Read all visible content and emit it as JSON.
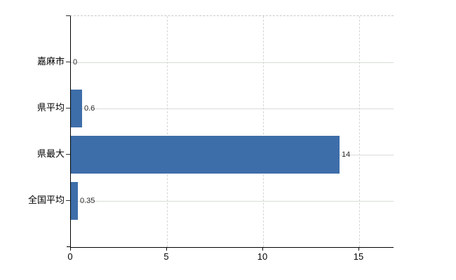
{
  "chart_data": {
    "type": "bar",
    "orientation": "horizontal",
    "title": "",
    "categories": [
      "嘉麻市",
      "県平均",
      "県最大",
      "全国平均"
    ],
    "values": [
      0,
      0.6,
      14,
      0.35
    ],
    "value_labels": [
      "0",
      "0.6",
      "14",
      "0.35"
    ],
    "x_ticks": [
      0,
      5,
      10,
      15
    ],
    "x_tick_labels": [
      "0",
      "5",
      "10",
      "15"
    ],
    "xlim": [
      0,
      16.8
    ],
    "grid": true,
    "legend": false,
    "bar_color": "#3e6ea9",
    "axis_color": "#000000",
    "gridline_color": "#d7ddd5",
    "background_color": "#ffffff"
  }
}
